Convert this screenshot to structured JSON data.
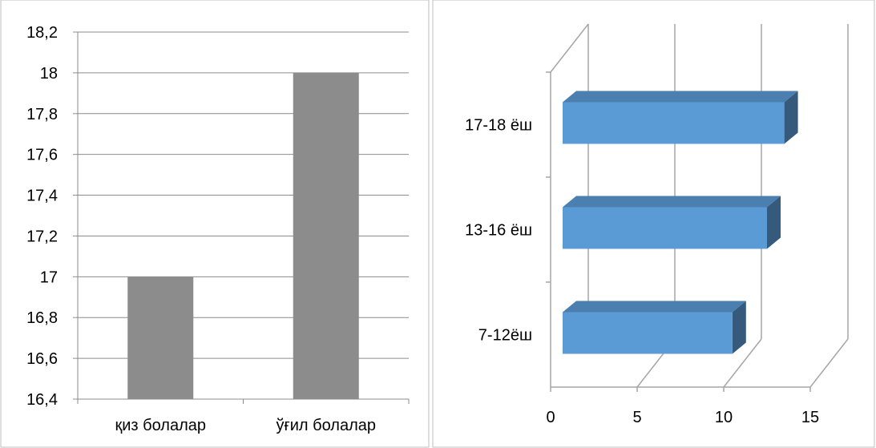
{
  "chart_data": [
    {
      "type": "bar",
      "categories": [
        "қиз болалар",
        "ўғил болалар"
      ],
      "values": [
        17.0,
        18.0
      ],
      "ylim": [
        16.4,
        18.2
      ],
      "ytick_labels": [
        "16,4",
        "16,6",
        "16,8",
        "17",
        "17,2",
        "17,4",
        "17,6",
        "17,8",
        "18",
        "18,2"
      ],
      "color": "#8c8c8c",
      "grid": true
    },
    {
      "type": "bar",
      "orientation": "horizontal",
      "style": "3d",
      "categories": [
        "7-12ёш",
        "13-16 ёш",
        "17-18 ёш"
      ],
      "values": [
        10.5,
        12.5,
        13.5
      ],
      "xlim": [
        0,
        15
      ],
      "xtick_labels": [
        "0",
        "5",
        "10",
        "15"
      ],
      "color": "#5b9bd5",
      "grid": true
    }
  ]
}
